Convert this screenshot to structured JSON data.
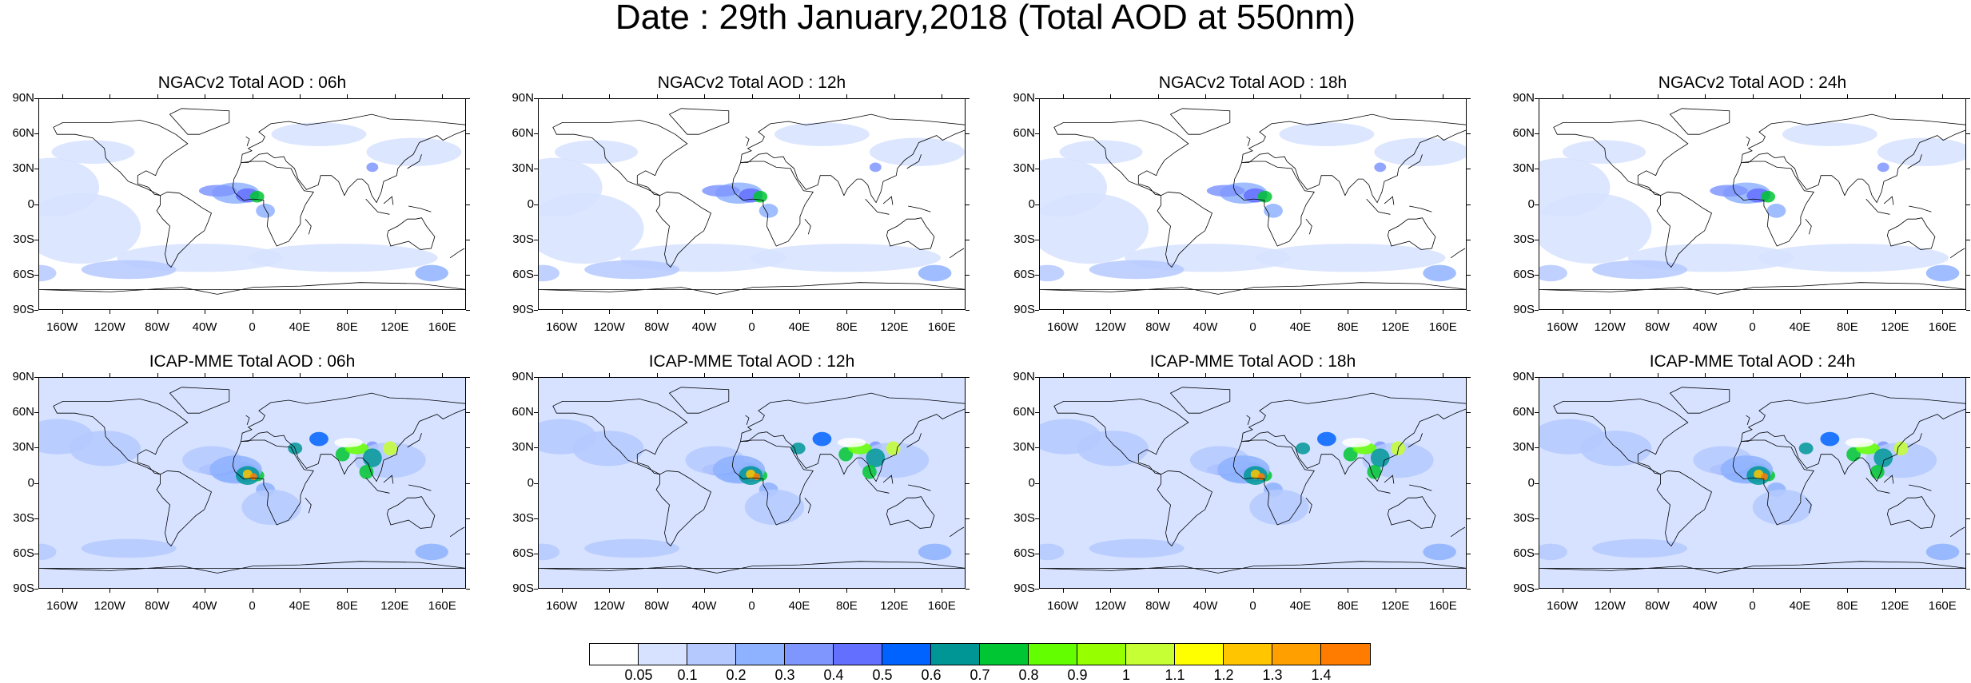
{
  "title": "Date : 29th January,2018 (Total AOD at 550nm)",
  "lat_ticks": [
    "90N",
    "60N",
    "30N",
    "0",
    "30S",
    "60S",
    "90S"
  ],
  "lon_ticks": [
    "160W",
    "120W",
    "80W",
    "40W",
    "0",
    "40E",
    "80E",
    "120E",
    "160E"
  ],
  "panels": [
    {
      "title": "NGACv2 Total AOD : 06h",
      "model": "NGACv2",
      "hour": "06h"
    },
    {
      "title": "NGACv2 Total AOD : 12h",
      "model": "NGACv2",
      "hour": "12h"
    },
    {
      "title": "NGACv2 Total AOD : 18h",
      "model": "NGACv2",
      "hour": "18h"
    },
    {
      "title": "NGACv2 Total AOD : 24h",
      "model": "NGACv2",
      "hour": "24h"
    },
    {
      "title": "ICAP-MME Total AOD : 06h",
      "model": "ICAP-MME",
      "hour": "06h"
    },
    {
      "title": "ICAP-MME Total AOD : 12h",
      "model": "ICAP-MME",
      "hour": "12h"
    },
    {
      "title": "ICAP-MME Total AOD : 18h",
      "model": "ICAP-MME",
      "hour": "18h"
    },
    {
      "title": "ICAP-MME Total AOD : 24h",
      "model": "ICAP-MME",
      "hour": "24h"
    }
  ],
  "colorbar": {
    "labels": [
      "0.05",
      "0.1",
      "0.2",
      "0.3",
      "0.4",
      "0.5",
      "0.6",
      "0.7",
      "0.8",
      "0.9",
      "1",
      "1.1",
      "1.2",
      "1.3",
      "1.4"
    ],
    "colors": [
      "#ffffff",
      "#d6e2ff",
      "#b5c9ff",
      "#8eb2ff",
      "#7f96ff",
      "#6370ff",
      "#0063ff",
      "#009696",
      "#00c633",
      "#63ff00",
      "#96ff00",
      "#c6ff33",
      "#ffff00",
      "#ffc600",
      "#ffa000",
      "#ff7c00",
      "#ff1900"
    ]
  }
}
